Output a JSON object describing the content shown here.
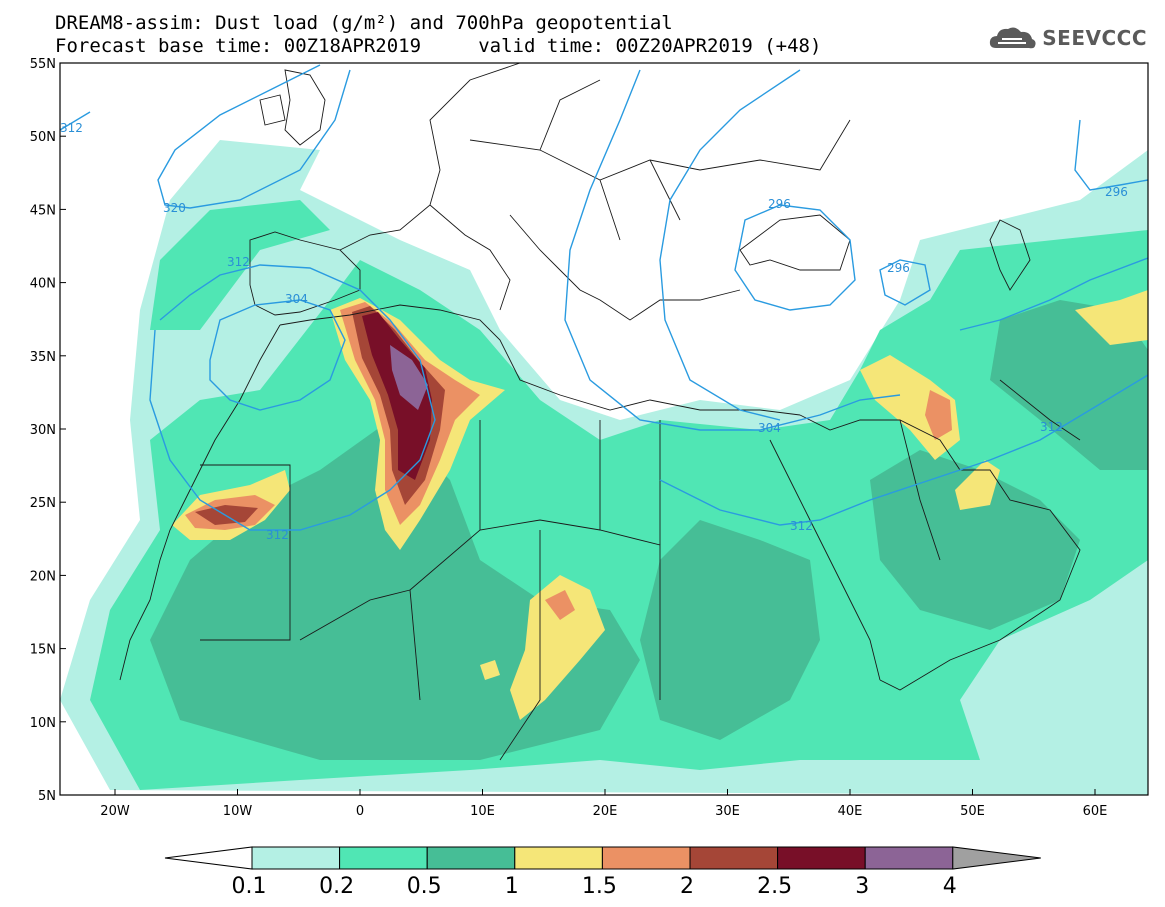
{
  "header": {
    "line1": "DREAM8-assim: Dust load (g/m²) and 700hPa geopotential",
    "line2": "Forecast base time: 00Z18APR2019     valid time: 00Z20APR2019 (+48)"
  },
  "logo": {
    "text": "SEEVCCC",
    "icon": "cloud-logo-icon"
  },
  "map": {
    "lat_labels": [
      "55N",
      "50N",
      "45N",
      "40N",
      "35N",
      "30N",
      "25N",
      "20N",
      "15N",
      "10N",
      "5N"
    ],
    "lon_labels": [
      "20W",
      "10W",
      "0",
      "10E",
      "20E",
      "30E",
      "40E",
      "50E",
      "60E"
    ],
    "contour_labels": [
      "312",
      "320",
      "312",
      "304",
      "296",
      "296",
      "304",
      "312",
      "312",
      "296",
      "312"
    ]
  },
  "colorbar": {
    "labels": [
      "0.1",
      "0.2",
      "0.5",
      "1",
      "1.5",
      "2",
      "2.5",
      "3",
      "4"
    ],
    "colors": [
      "#ffffff",
      "#b4f0e4",
      "#50e6b4",
      "#46be96",
      "#f5e678",
      "#eb9164",
      "#a54637",
      "#780f28",
      "#8c6496",
      "#a0a0a0"
    ]
  }
}
